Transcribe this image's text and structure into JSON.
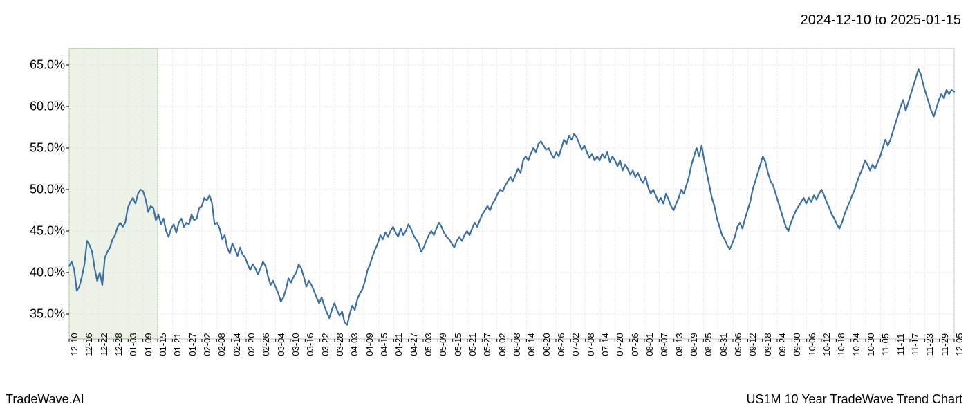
{
  "header": {
    "date_range": "2024-12-10 to 2025-01-15"
  },
  "footer": {
    "left": "TradeWave.AI",
    "right": "US1M 10 Year TradeWave Trend Chart"
  },
  "chart": {
    "type": "line",
    "background_color": "#ffffff",
    "line_color": "#3b6fa8",
    "line_width": 2.2,
    "grid_color": "#e0e0e0",
    "grid_dash": "2,2",
    "border_color": "#bdbdbd",
    "highlight_band": {
      "fill": "#dde8d1",
      "fill_opacity": 0.55,
      "stroke": "#9dbd8b",
      "x_start_index": 0,
      "x_end_index": 6
    },
    "y_axis": {
      "min": 32,
      "max": 67,
      "ticks": [
        35,
        40,
        45,
        50,
        55,
        60,
        65
      ],
      "tick_labels": [
        "35.0%",
        "40.0%",
        "45.0%",
        "50.0%",
        "55.0%",
        "60.0%",
        "65.0%"
      ],
      "label_fontsize": 18
    },
    "x_axis": {
      "labels": [
        "12-10",
        "12-16",
        "12-22",
        "12-28",
        "01-03",
        "01-09",
        "01-15",
        "01-21",
        "01-27",
        "02-02",
        "02-08",
        "02-14",
        "02-20",
        "02-26",
        "03-04",
        "03-10",
        "03-16",
        "03-22",
        "03-28",
        "04-03",
        "04-09",
        "04-15",
        "04-21",
        "04-27",
        "05-03",
        "05-09",
        "05-15",
        "05-21",
        "05-27",
        "06-02",
        "06-08",
        "06-14",
        "06-20",
        "06-26",
        "07-02",
        "07-08",
        "07-14",
        "07-20",
        "07-26",
        "08-01",
        "08-07",
        "08-13",
        "08-19",
        "08-25",
        "08-31",
        "09-06",
        "09-12",
        "09-18",
        "09-24",
        "09-30",
        "10-06",
        "10-12",
        "10-18",
        "10-24",
        "10-30",
        "11-05",
        "11-11",
        "11-17",
        "11-23",
        "11-29",
        "12-05"
      ],
      "label_fontsize": 13,
      "rotation": -90
    },
    "series": {
      "values": [
        40.8,
        41.3,
        40.3,
        37.8,
        38.3,
        39.5,
        41.0,
        43.8,
        43.3,
        42.5,
        40.5,
        39.0,
        40.0,
        38.5,
        41.8,
        42.5,
        43.0,
        44.0,
        44.5,
        45.5,
        46.0,
        45.5,
        46.0,
        47.8,
        48.5,
        49.0,
        48.3,
        49.5,
        50.0,
        49.8,
        48.8,
        47.3,
        48.0,
        47.8,
        46.3,
        47.0,
        45.8,
        46.5,
        45.0,
        44.3,
        45.3,
        45.8,
        44.8,
        46.0,
        46.5,
        45.5,
        46.0,
        45.8,
        47.0,
        46.3,
        46.5,
        47.8,
        48.0,
        49.0,
        48.7,
        49.3,
        48.4,
        45.8,
        46.0,
        45.3,
        44.0,
        44.5,
        43.0,
        42.3,
        43.5,
        42.8,
        42.0,
        43.0,
        42.2,
        41.8,
        41.0,
        40.3,
        41.0,
        40.5,
        39.8,
        40.5,
        41.3,
        40.8,
        39.5,
        38.5,
        39.0,
        38.2,
        37.5,
        36.5,
        37.0,
        38.0,
        39.3,
        38.8,
        39.5,
        40.0,
        41.0,
        40.5,
        39.5,
        38.3,
        39.0,
        38.5,
        37.8,
        37.0,
        36.3,
        37.0,
        36.0,
        35.2,
        34.5,
        35.5,
        36.3,
        35.5,
        34.8,
        35.3,
        34.0,
        33.7,
        35.0,
        36.0,
        35.5,
        36.8,
        37.5,
        38.0,
        39.0,
        40.3,
        41.0,
        42.0,
        42.8,
        43.5,
        44.5,
        44.0,
        44.8,
        44.3,
        45.0,
        45.5,
        44.8,
        44.3,
        45.3,
        44.5,
        45.0,
        45.8,
        45.3,
        44.5,
        44.0,
        43.5,
        42.5,
        43.0,
        43.8,
        44.5,
        45.0,
        44.5,
        45.3,
        46.0,
        45.5,
        44.8,
        44.3,
        44.0,
        43.5,
        43.0,
        43.8,
        44.3,
        43.8,
        44.5,
        45.0,
        44.5,
        45.3,
        46.0,
        45.5,
        46.3,
        47.0,
        47.5,
        48.0,
        47.5,
        48.3,
        48.8,
        49.5,
        50.0,
        49.8,
        50.5,
        51.0,
        51.5,
        51.0,
        51.8,
        52.5,
        52.0,
        53.5,
        54.0,
        53.5,
        54.3,
        55.0,
        54.5,
        55.5,
        55.8,
        55.3,
        54.8,
        55.0,
        54.3,
        53.8,
        54.5,
        54.0,
        55.0,
        56.0,
        55.5,
        56.5,
        56.0,
        56.7,
        56.3,
        55.5,
        54.8,
        55.3,
        54.5,
        53.8,
        54.3,
        53.5,
        54.0,
        53.5,
        54.3,
        53.8,
        54.5,
        53.3,
        54.0,
        53.5,
        52.8,
        53.5,
        52.3,
        53.0,
        52.5,
        51.8,
        52.3,
        51.5,
        52.0,
        51.3,
        50.8,
        51.5,
        50.3,
        49.5,
        50.0,
        49.3,
        48.5,
        49.0,
        48.3,
        49.5,
        48.8,
        48.0,
        47.5,
        48.3,
        49.0,
        50.0,
        49.5,
        50.5,
        51.5,
        53.0,
        54.0,
        55.0,
        54.0,
        55.3,
        53.5,
        52.0,
        50.5,
        49.0,
        48.0,
        46.5,
        45.5,
        44.5,
        44.0,
        43.3,
        42.8,
        43.5,
        44.3,
        45.5,
        46.0,
        45.3,
        46.5,
        47.5,
        48.5,
        50.0,
        51.0,
        52.0,
        53.0,
        54.0,
        53.3,
        52.0,
        51.0,
        50.5,
        49.5,
        48.5,
        47.5,
        46.5,
        45.5,
        45.0,
        46.0,
        46.8,
        47.5,
        48.0,
        48.5,
        49.0,
        48.3,
        49.0,
        48.5,
        49.3,
        48.8,
        49.5,
        50.0,
        49.3,
        48.5,
        47.8,
        47.0,
        46.5,
        45.8,
        45.3,
        46.0,
        47.0,
        47.8,
        48.5,
        49.3,
        50.0,
        51.0,
        51.8,
        52.5,
        53.5,
        53.0,
        52.3,
        53.0,
        52.5,
        53.3,
        54.0,
        55.0,
        56.0,
        55.3,
        56.0,
        57.0,
        58.0,
        59.0,
        60.0,
        60.8,
        59.5,
        60.5,
        61.5,
        62.5,
        63.5,
        64.5,
        63.8,
        62.5,
        61.5,
        60.5,
        59.5,
        58.8,
        59.8,
        60.8,
        61.5,
        61.0,
        62.0,
        61.5,
        62.0,
        61.8
      ]
    }
  }
}
